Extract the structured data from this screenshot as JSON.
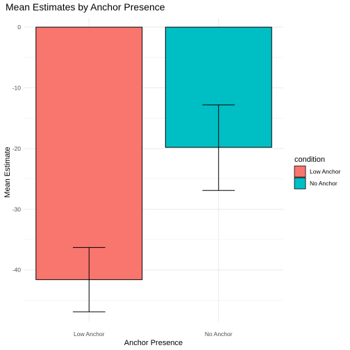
{
  "chart_data": {
    "type": "bar",
    "title": "Mean Estimates by Anchor Presence",
    "xlabel": "Anchor Presence",
    "ylabel": "Mean Estimate",
    "categories": [
      "Low Anchor",
      "No Anchor"
    ],
    "values": [
      -41.6,
      -19.8
    ],
    "error_bars": [
      {
        "low": -46.9,
        "high": -36.3
      },
      {
        "low": -26.9,
        "high": -12.8
      }
    ],
    "colors": [
      "#F8766D",
      "#00BFC4"
    ],
    "ylim": [
      -48.5,
      1.5
    ],
    "yticks": [
      0,
      -10,
      -20,
      -30,
      -40
    ],
    "grid": true,
    "legend": {
      "title": "condition",
      "position": "right",
      "items": [
        {
          "label": "Low Anchor",
          "color": "#F8766D"
        },
        {
          "label": "No Anchor",
          "color": "#00BFC4"
        }
      ]
    }
  }
}
